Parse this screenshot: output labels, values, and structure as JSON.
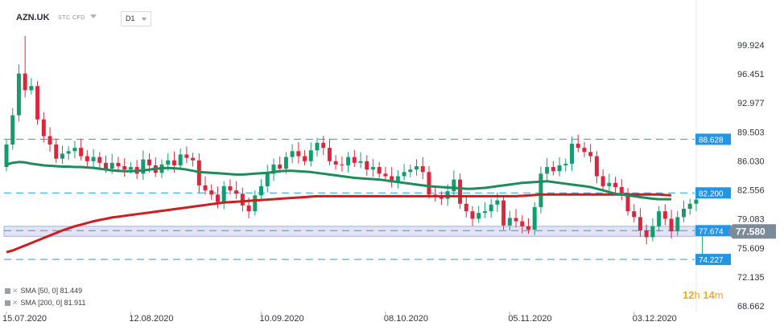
{
  "header": {
    "symbol": "AZN.UK",
    "instrument_type": "STC CFD",
    "timeframe": "D1"
  },
  "legend": [
    {
      "label": "SMA",
      "params": "[50, 0]",
      "value": "81.449"
    },
    {
      "label": "SMA",
      "params": "[200, 0]",
      "value": "81.911"
    }
  ],
  "countdown": {
    "hours": "12",
    "hours_unit": "h",
    "minutes": "14",
    "minutes_unit": "m"
  },
  "colors": {
    "bull": "#159c6e",
    "bear": "#d9283e",
    "sma50": "#1f8b5a",
    "sma200": "#cc1f1f",
    "level_line": "#1aa3d6",
    "level_label_bg": "#2196e6",
    "price_label_bg": "#7d8a99",
    "zone_fill": "#dcdcf3",
    "zone_border": "#a9aee0",
    "countdown": "#f2a81d"
  },
  "chart_data": {
    "type": "candlestick",
    "y_axis_ticks": [
      "99.924",
      "96.451",
      "92.977",
      "89.503",
      "86.030",
      "82.556",
      "79.083",
      "75.609",
      "72.135",
      "68.662"
    ],
    "ylim": [
      68.662,
      101.3
    ],
    "x_axis_ticks": [
      {
        "label": "15.07.2020",
        "index": 0
      },
      {
        "label": "12.08.2020",
        "index": 20
      },
      {
        "label": "10.09.2020",
        "index": 41
      },
      {
        "label": "08.10.2020",
        "index": 61
      },
      {
        "label": "05.11.2020",
        "index": 81
      },
      {
        "label": "03.12.2020",
        "index": 101
      }
    ],
    "horizontal_levels": [
      {
        "value": 88.628,
        "label": "88.628",
        "style": "dashed"
      },
      {
        "value": 82.2,
        "label": "82.200",
        "style": "dashed"
      },
      {
        "value": 77.674,
        "label": "77.674",
        "style": "dashed"
      },
      {
        "value": 74.227,
        "label": "74.227",
        "style": "dashed"
      }
    ],
    "zone": {
      "from": 77.0,
      "to": 78.2
    },
    "current_price": {
      "value": 77.58,
      "label": "77.580"
    },
    "sma50_series": [
      85.6,
      85.8,
      85.9,
      85.85,
      85.7,
      85.6,
      85.5,
      85.45,
      85.4,
      85.35,
      85.35,
      85.3,
      85.3,
      85.25,
      85.2,
      85.1,
      85.0,
      84.9,
      84.85,
      84.8,
      84.8,
      84.85,
      84.9,
      85.0,
      85.1,
      85.15,
      85.2,
      85.15,
      85.1,
      85.0,
      84.85,
      84.7,
      84.65,
      84.6,
      84.55,
      84.5,
      84.45,
      84.4,
      84.4,
      84.45,
      84.5,
      84.55,
      84.6,
      84.7,
      84.8,
      84.85,
      84.85,
      84.8,
      84.75,
      84.7,
      84.6,
      84.5,
      84.4,
      84.3,
      84.2,
      84.1,
      84.0,
      83.95,
      83.9,
      83.85,
      83.8,
      83.7,
      83.6,
      83.5,
      83.4,
      83.3,
      83.2,
      83.1,
      83.0,
      82.95,
      82.9,
      82.85,
      82.8,
      82.75,
      82.7,
      82.7,
      82.75,
      82.8,
      82.9,
      83.0,
      83.1,
      83.2,
      83.3,
      83.4,
      83.45,
      83.5,
      83.55,
      83.6,
      83.5,
      83.4,
      83.3,
      83.2,
      83.1,
      83.0,
      82.9,
      82.7,
      82.5,
      82.3,
      82.1,
      82.0,
      81.9,
      81.8,
      81.7,
      81.6,
      81.5,
      81.45,
      81.45,
      81.45
    ],
    "sma200_series": [
      75.1,
      75.3,
      75.6,
      75.9,
      76.2,
      76.5,
      76.8,
      77.1,
      77.4,
      77.7,
      77.95,
      78.2,
      78.4,
      78.6,
      78.8,
      78.95,
      79.1,
      79.25,
      79.35,
      79.45,
      79.55,
      79.65,
      79.75,
      79.85,
      79.95,
      80.05,
      80.15,
      80.25,
      80.35,
      80.45,
      80.55,
      80.65,
      80.75,
      80.85,
      80.95,
      81.05,
      81.1,
      81.15,
      81.2,
      81.25,
      81.3,
      81.35,
      81.4,
      81.45,
      81.5,
      81.55,
      81.6,
      81.65,
      81.7,
      81.75,
      81.8,
      81.8,
      81.8,
      81.8,
      81.8,
      81.8,
      81.8,
      81.8,
      81.8,
      81.8,
      81.8,
      81.8,
      81.8,
      81.8,
      81.8,
      81.8,
      81.8,
      81.8,
      81.8,
      81.8,
      81.8,
      81.8,
      81.8,
      81.8,
      81.8,
      81.8,
      81.8,
      81.8,
      81.8,
      81.8,
      81.8,
      81.8,
      81.8,
      81.85,
      81.9,
      81.95,
      82.0,
      82.0,
      82.0,
      82.0,
      82.0,
      82.0,
      82.0,
      82.0,
      82.0,
      82.0,
      82.0,
      82.0,
      82.0,
      82.0,
      82.0,
      82.0,
      82.0,
      82.0,
      82.0,
      82.0,
      81.95,
      81.91
    ]
  }
}
